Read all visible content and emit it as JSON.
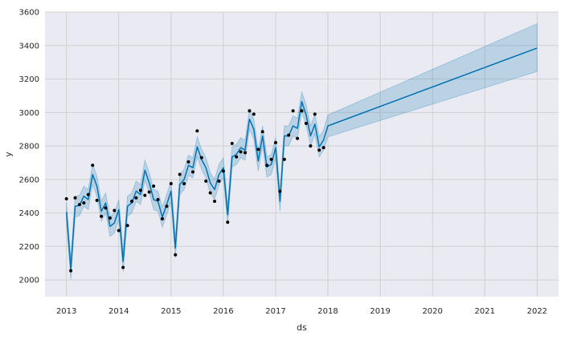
{
  "chart_data": {
    "type": "line",
    "xlabel": "ds",
    "ylabel": "y",
    "title": "",
    "xlim": [
      2012.59,
      2022.41
    ],
    "ylim": [
      1900,
      3600
    ],
    "x_ticks": [
      2013,
      2014,
      2015,
      2016,
      2017,
      2018,
      2019,
      2020,
      2021,
      2022
    ],
    "x_tick_labels": [
      "2013",
      "2014",
      "2015",
      "2016",
      "2017",
      "2018",
      "2019",
      "2020",
      "2021",
      "2022"
    ],
    "y_ticks": [
      2000,
      2200,
      2400,
      2600,
      2800,
      3000,
      3200,
      3400,
      3600
    ],
    "y_tick_labels": [
      "2000",
      "2200",
      "2400",
      "2600",
      "2800",
      "3000",
      "3200",
      "3400",
      "3600"
    ],
    "grid": true,
    "colors": {
      "background": "#eaeaf2",
      "grid": "#d0d0d0",
      "forecast_line": "#0072b2",
      "uncertainty_band": "#0072b2",
      "observed_points": "#000000"
    },
    "series": [
      {
        "kind": "observed",
        "x": [
          2013.0,
          2013.083,
          2013.167,
          2013.25,
          2013.333,
          2013.417,
          2013.5,
          2013.583,
          2013.667,
          2013.75,
          2013.833,
          2013.917,
          2014.0,
          2014.083,
          2014.167,
          2014.25,
          2014.333,
          2014.417,
          2014.5,
          2014.583,
          2014.667,
          2014.75,
          2014.833,
          2014.917,
          2015.0,
          2015.083,
          2015.167,
          2015.25,
          2015.333,
          2015.417,
          2015.5,
          2015.583,
          2015.667,
          2015.75,
          2015.833,
          2015.917,
          2016.0,
          2016.083,
          2016.167,
          2016.25,
          2016.333,
          2016.417,
          2016.5,
          2016.583,
          2016.667,
          2016.75,
          2016.833,
          2016.917,
          2017.0,
          2017.083,
          2017.167,
          2017.25,
          2017.333,
          2017.417,
          2017.5,
          2017.583,
          2017.667,
          2017.75,
          2017.833,
          2017.917
        ],
        "y": [
          2485,
          2055,
          2490,
          2450,
          2460,
          2510,
          2685,
          2475,
          2380,
          2430,
          2370,
          2415,
          2295,
          2075,
          2325,
          2470,
          2490,
          2535,
          2505,
          2525,
          2560,
          2480,
          2365,
          2440,
          2575,
          2150,
          2630,
          2575,
          2705,
          2645,
          2890,
          2730,
          2590,
          2520,
          2470,
          2590,
          2650,
          2345,
          2815,
          2735,
          2765,
          2760,
          3010,
          2990,
          2780,
          2885,
          2685,
          2720,
          2820,
          2530,
          2720,
          2865,
          3010,
          2845,
          3010,
          2935,
          2800,
          2990,
          2775,
          2790
        ]
      },
      {
        "kind": "forecast",
        "x": [
          2013.0,
          2013.083,
          2013.167,
          2013.25,
          2013.333,
          2013.417,
          2013.5,
          2013.583,
          2013.667,
          2013.75,
          2013.833,
          2013.917,
          2014.0,
          2014.083,
          2014.167,
          2014.25,
          2014.333,
          2014.417,
          2014.5,
          2014.583,
          2014.667,
          2014.75,
          2014.833,
          2014.917,
          2015.0,
          2015.083,
          2015.167,
          2015.25,
          2015.333,
          2015.417,
          2015.5,
          2015.583,
          2015.667,
          2015.75,
          2015.833,
          2015.917,
          2016.0,
          2016.083,
          2016.167,
          2016.25,
          2016.333,
          2016.417,
          2016.5,
          2016.583,
          2016.667,
          2016.75,
          2016.833,
          2016.917,
          2017.0,
          2017.083,
          2017.167,
          2017.25,
          2017.333,
          2017.417,
          2017.5,
          2017.583,
          2017.667,
          2017.75,
          2017.833,
          2017.917,
          2018.0,
          2022.0
        ],
        "y": [
          2405,
          2065,
          2440,
          2445,
          2500,
          2480,
          2630,
          2560,
          2410,
          2460,
          2320,
          2340,
          2420,
          2110,
          2440,
          2460,
          2530,
          2510,
          2655,
          2580,
          2480,
          2470,
          2375,
          2450,
          2530,
          2190,
          2570,
          2600,
          2685,
          2670,
          2795,
          2720,
          2670,
          2580,
          2540,
          2630,
          2670,
          2390,
          2735,
          2750,
          2790,
          2775,
          2960,
          2900,
          2710,
          2860,
          2675,
          2690,
          2790,
          2470,
          2860,
          2860,
          2920,
          2905,
          3065,
          2985,
          2860,
          2930,
          2795,
          2835,
          2920,
          3385
        ],
        "yhat_lower": [
          2345,
          2000,
          2375,
          2385,
          2440,
          2420,
          2570,
          2500,
          2350,
          2400,
          2260,
          2280,
          2360,
          2050,
          2380,
          2400,
          2470,
          2450,
          2595,
          2520,
          2420,
          2410,
          2315,
          2390,
          2470,
          2130,
          2510,
          2540,
          2625,
          2610,
          2735,
          2660,
          2610,
          2520,
          2480,
          2570,
          2610,
          2330,
          2675,
          2690,
          2730,
          2715,
          2900,
          2840,
          2650,
          2800,
          2615,
          2630,
          2730,
          2410,
          2800,
          2800,
          2860,
          2845,
          3005,
          2925,
          2800,
          2870,
          2735,
          2775,
          2855,
          3245
        ],
        "yhat_upper": [
          2465,
          2125,
          2500,
          2505,
          2560,
          2540,
          2690,
          2620,
          2470,
          2520,
          2380,
          2400,
          2480,
          2170,
          2500,
          2520,
          2590,
          2570,
          2715,
          2640,
          2540,
          2530,
          2435,
          2510,
          2590,
          2250,
          2630,
          2660,
          2745,
          2730,
          2855,
          2780,
          2730,
          2640,
          2600,
          2690,
          2730,
          2450,
          2795,
          2810,
          2850,
          2835,
          3020,
          2960,
          2770,
          2920,
          2735,
          2750,
          2850,
          2530,
          2920,
          2920,
          2980,
          2965,
          3125,
          3045,
          2920,
          2990,
          2855,
          2895,
          2985,
          3530
        ]
      }
    ]
  }
}
